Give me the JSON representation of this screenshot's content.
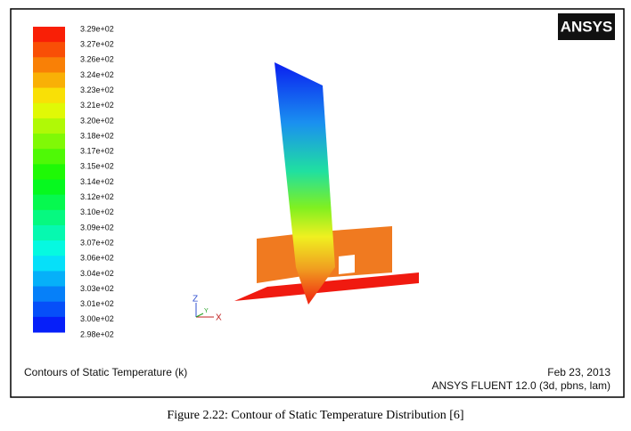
{
  "figure": {
    "colorbar_labels": [
      "3.29e+02",
      "3.27e+02",
      "3.26e+02",
      "3.24e+02",
      "3.23e+02",
      "3.21e+02",
      "3.20e+02",
      "3.18e+02",
      "3.17e+02",
      "3.15e+02",
      "3.14e+02",
      "3.12e+02",
      "3.10e+02",
      "3.09e+02",
      "3.07e+02",
      "3.06e+02",
      "3.04e+02",
      "3.03e+02",
      "3.01e+02",
      "3.00e+02",
      "2.98e+02"
    ],
    "logo": "ANSYS",
    "axis_labels": {
      "z": "Z",
      "y": "Y",
      "x": "X"
    },
    "plot_title": "Contours of Static Temperature (k)",
    "date": "Feb 23, 2013",
    "software": "ANSYS FLUENT 12.0 (3d, pbns, lam)"
  },
  "caption": "Figure 2.22: Contour of Static Temperature Distribution [6]"
}
